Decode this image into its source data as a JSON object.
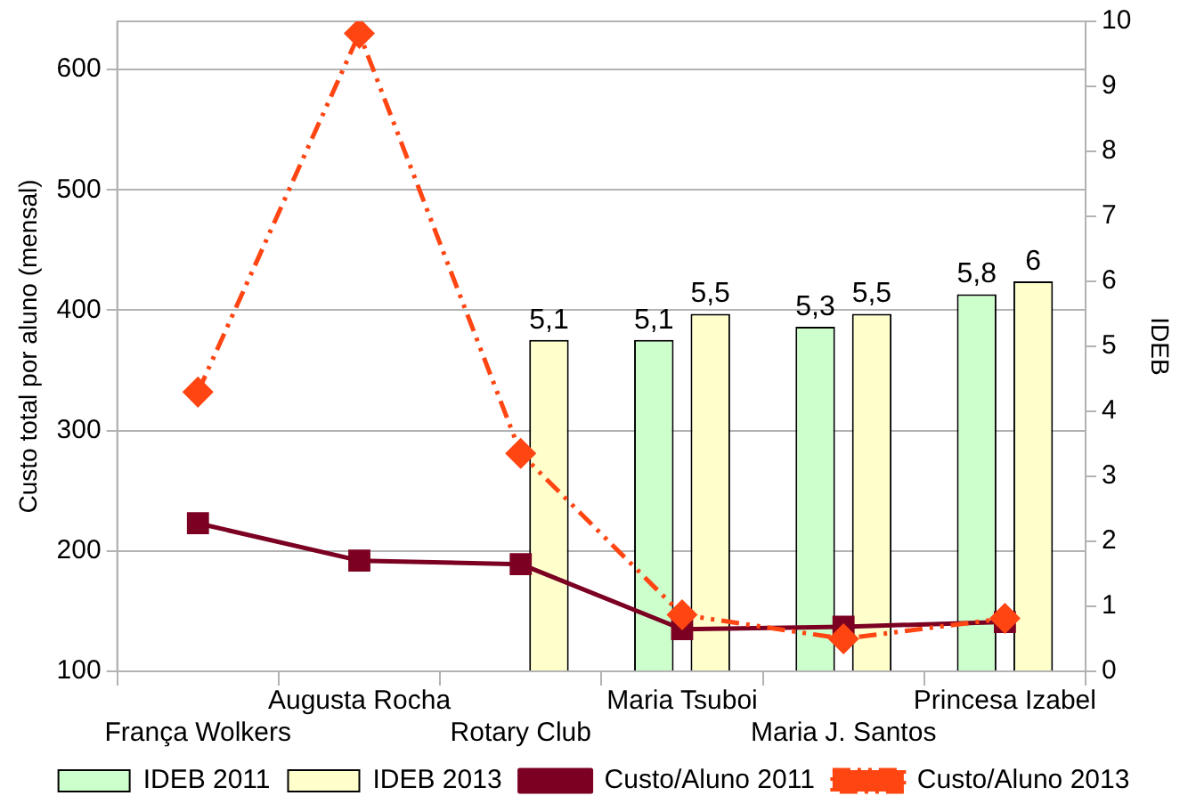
{
  "chart_data": {
    "type": "bar",
    "ylabel": "Custo total por aluno (mensal)",
    "y2label": "IDEB",
    "categories": [
      "França Wolkers",
      "Augusta Rocha",
      "Rotary Club",
      "Maria Tsuboi",
      "Maria J. Santos",
      "Princesa Izabel"
    ],
    "series": [
      {
        "name": "IDEB 2011",
        "axis": "y2",
        "color": "#ccffcc",
        "values": [
          null,
          null,
          null,
          5.1,
          5.3,
          5.8
        ],
        "value_labels": [
          null,
          null,
          null,
          "5,1",
          "5,3",
          "5,8"
        ]
      },
      {
        "name": "IDEB 2013",
        "axis": "y2",
        "color": "#ffffcc",
        "values": [
          null,
          null,
          5.1,
          5.5,
          5.5,
          6
        ],
        "value_labels": [
          null,
          null,
          "5,1",
          "5,5",
          "5,5",
          "6"
        ]
      },
      {
        "name": "Custo/Aluno 2011",
        "type": "line",
        "color": "#7b0022",
        "marker": "square",
        "line_style": "solid",
        "values": [
          223,
          192,
          189,
          135,
          137,
          141
        ]
      },
      {
        "name": "Custo/Aluno 2013",
        "type": "line",
        "color": "#ff4512",
        "marker": "diamond",
        "line_style": "dashed",
        "values": [
          332,
          630,
          281,
          147,
          127,
          144
        ]
      }
    ],
    "ylim": [
      100,
      640
    ],
    "yticks": [
      100,
      200,
      300,
      400,
      500,
      600
    ],
    "y2lim": [
      0,
      10
    ],
    "y2ticks": [
      0,
      1,
      2,
      3,
      4,
      5,
      6,
      7,
      8,
      9,
      10
    ],
    "grid": "y",
    "legend": "bottom"
  }
}
